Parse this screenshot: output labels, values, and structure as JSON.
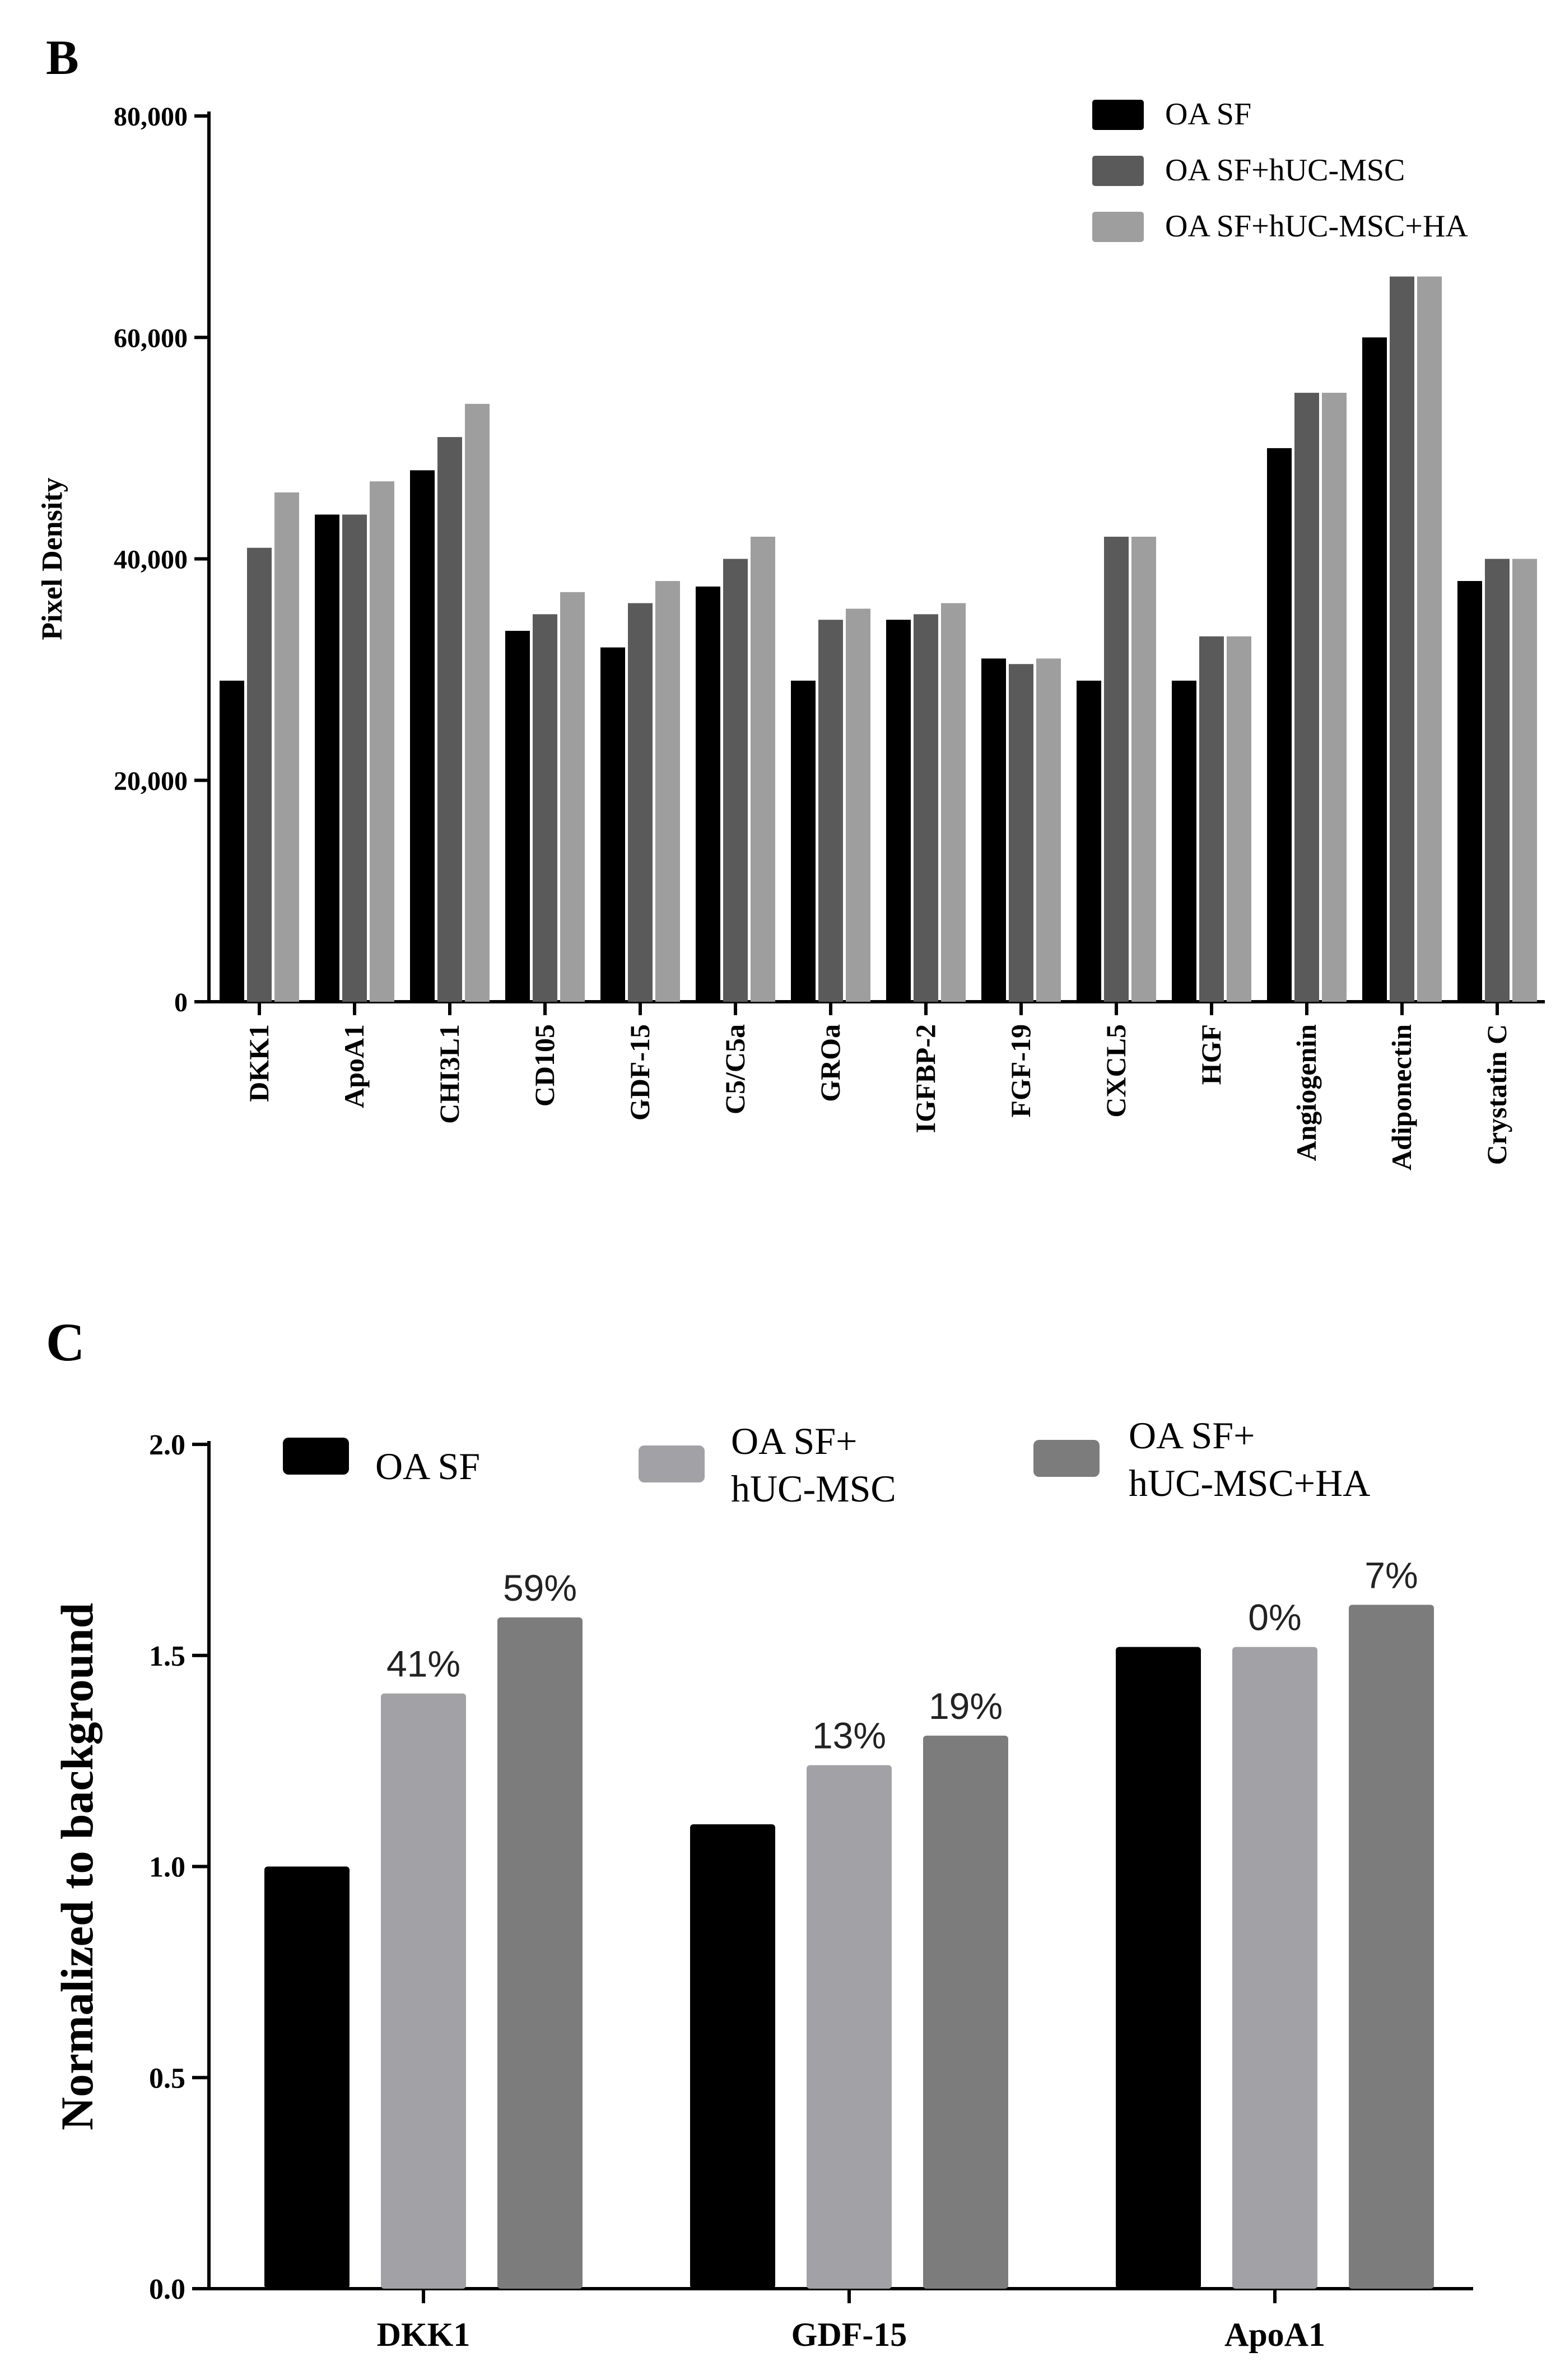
{
  "chart_data": [
    {
      "panel_label": "B",
      "type": "bar",
      "ylabel": "Pixel Density",
      "xlabel": "",
      "ylim": [
        0,
        80000
      ],
      "yticks": [
        0,
        20000,
        40000,
        60000,
        80000
      ],
      "ytick_labels": [
        "0",
        "20,000",
        "40,000",
        "60,000",
        "80,000"
      ],
      "legend_position": "top-right",
      "categories": [
        "DKK1",
        "ApoA1",
        "CHI3L1",
        "CD105",
        "GDF-15",
        "C5/C5a",
        "GROa",
        "IGFBP-2",
        "FGF-19",
        "CXCL5",
        "HGF",
        "Angiogenin",
        "Adiponectin",
        "Crystatin C"
      ],
      "series": [
        {
          "name": "OA SF",
          "color": "#000000",
          "values": [
            29000,
            44000,
            48000,
            33500,
            32000,
            37500,
            29000,
            34500,
            31000,
            29000,
            29000,
            50000,
            60000,
            38000
          ]
        },
        {
          "name": "OA SF+hUC-MSC",
          "color": "#5a5a5a",
          "values": [
            41000,
            44000,
            51000,
            35000,
            36000,
            40000,
            34500,
            35000,
            30500,
            42000,
            33000,
            55000,
            65500,
            40000
          ]
        },
        {
          "name": "OA SF+hUC-MSC+HA",
          "color": "#9e9e9e",
          "values": [
            46000,
            47000,
            54000,
            37000,
            38000,
            42000,
            35500,
            36000,
            31000,
            42000,
            33000,
            55000,
            65500,
            40000
          ]
        }
      ]
    },
    {
      "panel_label": "C",
      "type": "bar",
      "ylabel": "Normalized to background",
      "xlabel": "",
      "ylim": [
        0,
        2.0
      ],
      "yticks": [
        0,
        0.5,
        1.0,
        1.5,
        2.0
      ],
      "ytick_labels": [
        "0.0",
        "0.5",
        "1.0",
        "1.5",
        "2.0"
      ],
      "legend_position": "top",
      "categories": [
        "DKK1",
        "GDF-15",
        "ApoA1"
      ],
      "series": [
        {
          "name": "OA SF",
          "legend_lines": [
            "OA SF"
          ],
          "color": "#000000",
          "values": [
            1.0,
            1.1,
            1.52
          ],
          "labels": [
            "",
            "",
            ""
          ]
        },
        {
          "name": "OA SF+ hUC-MSC",
          "legend_lines": [
            "OA SF+",
            "hUC-MSC"
          ],
          "color": "#a2a2a6",
          "values": [
            1.41,
            1.24,
            1.52
          ],
          "labels": [
            "41%",
            "13%",
            "0%"
          ]
        },
        {
          "name": "OA SF+ hUC-MSC+HA",
          "legend_lines": [
            "OA SF+",
            "hUC-MSC+HA"
          ],
          "color": "#7c7c7c",
          "values": [
            1.59,
            1.31,
            1.62
          ],
          "labels": [
            "59%",
            "19%",
            "7%"
          ]
        }
      ]
    }
  ]
}
